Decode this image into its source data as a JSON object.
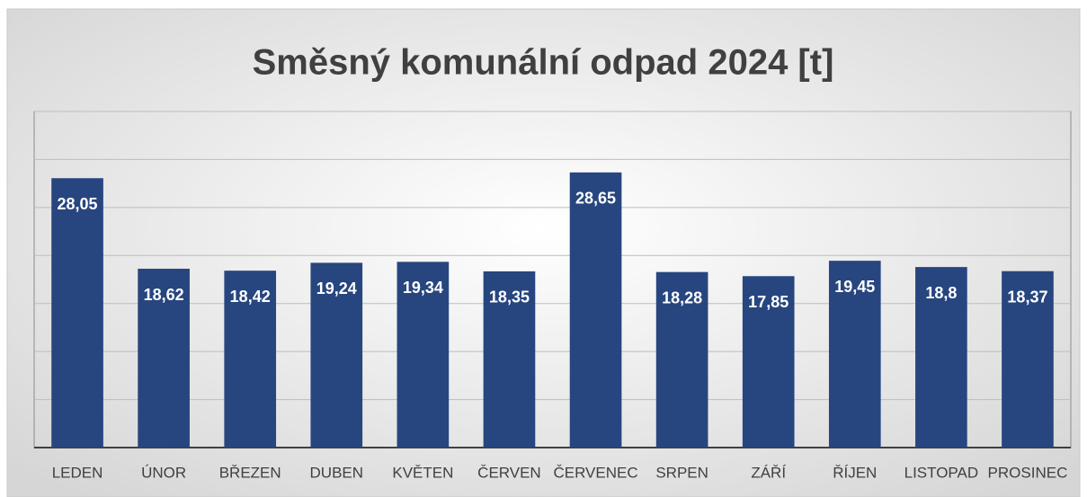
{
  "chart_data": {
    "type": "bar",
    "title": "Směsný komunální odpad 2024 [t]",
    "categories": [
      "LEDEN",
      "ÚNOR",
      "BŘEZEN",
      "DUBEN",
      "KVĚTEN",
      "ČERVEN",
      "ČERVENEC",
      "SRPEN",
      "ZÁŘÍ",
      "ŘÍJEN",
      "LISTOPAD",
      "PROSINEC"
    ],
    "values": [
      28.05,
      18.62,
      18.42,
      19.24,
      19.34,
      18.35,
      28.65,
      18.28,
      17.85,
      19.45,
      18.8,
      18.37
    ],
    "value_labels": [
      "28,05",
      "18,62",
      "18,42",
      "19,24",
      "19,34",
      "18,35",
      "28,65",
      "18,28",
      "17,85",
      "19,45",
      "18,8",
      "18,37"
    ],
    "color": "#27467f",
    "ylim": [
      0,
      35
    ],
    "yticks": [
      0,
      5,
      10,
      15,
      20,
      25,
      30,
      35
    ],
    "grid": true
  }
}
